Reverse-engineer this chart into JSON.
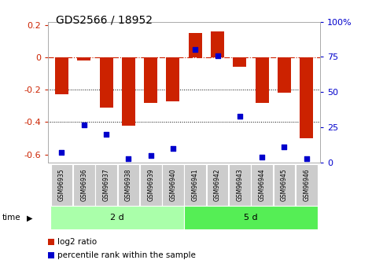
{
  "title": "GDS2566 / 18952",
  "samples": [
    "GSM96935",
    "GSM96936",
    "GSM96937",
    "GSM96938",
    "GSM96939",
    "GSM96940",
    "GSM96941",
    "GSM96942",
    "GSM96943",
    "GSM96944",
    "GSM96945",
    "GSM96946"
  ],
  "log2_ratio": [
    -0.23,
    -0.02,
    -0.31,
    -0.42,
    -0.28,
    -0.27,
    0.15,
    0.16,
    -0.06,
    -0.28,
    -0.22,
    -0.5
  ],
  "percentile_rank": [
    7,
    27,
    20,
    3,
    5,
    10,
    80,
    76,
    33,
    4,
    11,
    3
  ],
  "group1_label": "2 d",
  "group1_count": 6,
  "group2_label": "5 d",
  "group2_count": 6,
  "bar_color": "#cc2200",
  "dot_color": "#0000cc",
  "ylim_left": [
    -0.65,
    0.22
  ],
  "ylim_right": [
    0,
    100
  ],
  "yticks_left": [
    0.2,
    0.0,
    -0.2,
    -0.4,
    -0.6
  ],
  "yticks_right": [
    100,
    75,
    50,
    25,
    0
  ],
  "hline_color": "#cc2200",
  "dotline_color": "black",
  "group1_color": "#aaffaa",
  "group2_color": "#55ee55",
  "sample_box_color": "#cccccc",
  "bar_width": 0.6,
  "dot_size": 20,
  "time_label": "time",
  "legend1": "log2 ratio",
  "legend2": "percentile rank within the sample"
}
